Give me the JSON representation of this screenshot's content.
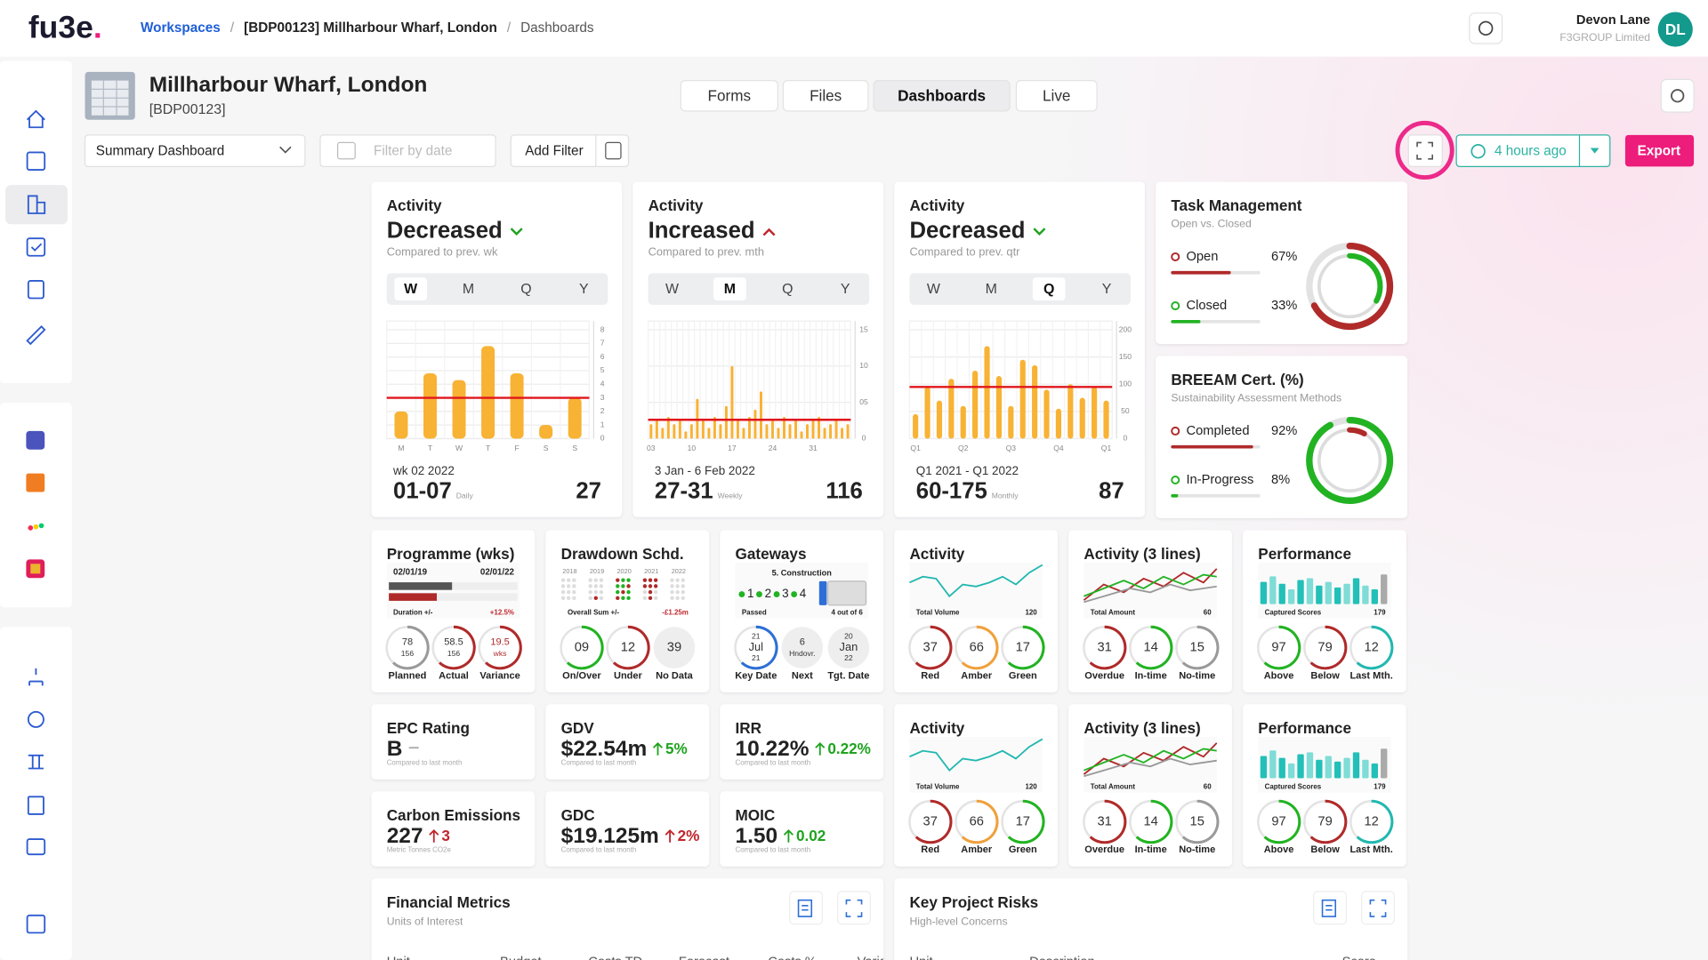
{
  "header": {
    "logo": "fu3e",
    "logo_dot": ".",
    "breadcrumb": [
      "Workspaces",
      "/",
      "[BDP00123] Millharbour Wharf, London",
      "/",
      "Dashboards"
    ],
    "user": {
      "name": "Devon Lane",
      "org": "F3GROUP Limited",
      "initials": "DL"
    }
  },
  "project": {
    "title": "Millharbour Wharf, London",
    "code": "[BDP00123]"
  },
  "tabs": [
    "Forms",
    "Files",
    "Dashboards",
    "Live"
  ],
  "active_tab": 2,
  "toolbar": {
    "dashboard": "Summary Dashboard",
    "filter_placeholder": "Filter by date",
    "add_filter": "Add Filter",
    "updated": "4 hours ago",
    "export": "Export"
  },
  "activity_cards": [
    {
      "title": "Activity",
      "status": "Decreased",
      "trend": "down",
      "note": "Compared to prev. wk",
      "periods": [
        "W",
        "M",
        "Q",
        "Y"
      ],
      "selected": 0,
      "chart": {
        "type": "bar",
        "color": "#f8b234",
        "categories": [
          "M",
          "T",
          "W",
          "T",
          "F",
          "S",
          "S"
        ],
        "values": [
          2,
          4.8,
          4.3,
          6.8,
          4.8,
          1,
          3
        ],
        "threshold": 3,
        "ylim": [
          0,
          8
        ],
        "yticks": [
          0,
          1,
          2,
          3,
          4,
          5,
          6,
          7,
          8
        ]
      },
      "range": "wk 02 2022",
      "period": "01-07",
      "unit": "Daily",
      "total": 27
    },
    {
      "title": "Activity",
      "status": "Increased",
      "trend": "up",
      "note": "Compared to prev. mth",
      "periods": [
        "W",
        "M",
        "Q",
        "Y"
      ],
      "selected": 1,
      "chart": {
        "type": "bar",
        "color": "#f8b234",
        "categories": [
          "03",
          null,
          null,
          null,
          null,
          null,
          null,
          "10",
          null,
          null,
          null,
          null,
          null,
          null,
          "17",
          null,
          null,
          null,
          null,
          null,
          null,
          "24",
          null,
          null,
          null,
          null,
          null,
          null,
          "31",
          null,
          null,
          null,
          null,
          null,
          null
        ],
        "values": [
          2,
          2.5,
          1.5,
          3,
          2,
          2.5,
          1,
          2,
          5.5,
          2.5,
          1.5,
          3,
          2,
          4.5,
          10,
          2.5,
          1.5,
          3,
          4,
          6.5,
          2,
          2.5,
          1.5,
          3,
          2,
          2.5,
          1,
          2,
          2.5,
          3,
          1.5,
          2,
          2.5,
          1.5,
          2
        ],
        "threshold": 2.6,
        "ylim": [
          0,
          15
        ],
        "yticks": [
          0,
          {
            "value": 5,
            "label": "05"
          },
          10,
          15
        ]
      },
      "range": "3 Jan - 6 Feb 2022",
      "period": "27-31",
      "unit": "Weekly",
      "total": 116
    },
    {
      "title": "Activity",
      "status": "Decreased",
      "trend": "down",
      "note": "Compared to prev. qtr",
      "periods": [
        "W",
        "M",
        "Q",
        "Y"
      ],
      "selected": 2,
      "chart": {
        "type": "bar",
        "color": "#f8b234",
        "categories": [
          "Q1",
          null,
          null,
          null,
          "Q2",
          null,
          null,
          null,
          "Q3",
          null,
          null,
          null,
          "Q4",
          null,
          null,
          null,
          "Q1"
        ],
        "values": [
          45,
          95,
          70,
          110,
          60,
          125,
          170,
          115,
          60,
          145,
          135,
          90,
          55,
          100,
          75,
          95,
          70
        ],
        "threshold": 95,
        "ylim": [
          0,
          200
        ],
        "yticks": [
          0,
          50,
          100,
          150,
          200
        ]
      },
      "range": "Q1 2021 - Q1 2022",
      "period": "60-175",
      "unit": "Monthly",
      "total": 87
    }
  ],
  "ring_cards": [
    {
      "title": "Task Management",
      "subtitle": "Open vs. Closed",
      "ring_colors": [
        "#b02a2a",
        "#22b322"
      ],
      "items": [
        {
          "label": "Open",
          "value": 67,
          "value_label": "67%",
          "color": "#b02a2a"
        },
        {
          "label": "Closed",
          "value": 33,
          "value_label": "33%",
          "color": "#22b322"
        }
      ]
    },
    {
      "title": "BREEAM Cert. (%)",
      "subtitle": "Sustainability Assessment Methods",
      "ring_colors": [
        "#22b322",
        "#b02a2a"
      ],
      "items": [
        {
          "label": "Completed",
          "value": 92,
          "value_label": "92%",
          "color": "#b02a2a"
        },
        {
          "label": "In-Progress",
          "value": 8,
          "value_label": "8%",
          "color": "#22b322"
        }
      ]
    }
  ],
  "mini_cards": [
    {
      "title": "Programme (wks)",
      "kind": "program",
      "start": "02/01/19",
      "end": "02/01/22",
      "caption": "Duration +/-",
      "caption_value": "+12.5%",
      "gauges": [
        {
          "lines": [
            "78",
            "156"
          ],
          "label": "Planned",
          "color": "#9a9a9a"
        },
        {
          "lines": [
            "58.5",
            "156"
          ],
          "label": "Actual",
          "color": "#b02a2a"
        },
        {
          "lines": [
            "19.5",
            "wks"
          ],
          "label": "Variance",
          "color": "#b02a2a",
          "text_color": "#b02a2a"
        }
      ]
    },
    {
      "title": "Drawdown Schd.",
      "kind": "drawdown",
      "years": [
        "2018",
        "2019",
        "2020",
        "2021",
        "2022"
      ],
      "caption": "Overall Sum +/-",
      "caption_value": "-£1.25m",
      "gauges": [
        {
          "lines": [
            "09"
          ],
          "label": "On/Over",
          "color": "#22b322"
        },
        {
          "lines": [
            "12"
          ],
          "label": "Under",
          "color": "#b02a2a"
        },
        {
          "lines": [
            "39"
          ],
          "label": "No Data",
          "color": "#e6e6e6",
          "filled": true
        }
      ]
    },
    {
      "title": "Gateways",
      "kind": "gateway",
      "stage": "5. Construction",
      "steps": [
        "1",
        "2",
        "3",
        "4"
      ],
      "caption": "Passed",
      "caption_value": "4 out of 6",
      "gauges": [
        {
          "lines": [
            "21",
            "Jul",
            "21"
          ],
          "label": "Key Date",
          "color": "#2d6fd6"
        },
        {
          "lines": [
            "6",
            "Hndovr."
          ],
          "label": "Next",
          "color": "#e6e6e6",
          "filled": true
        },
        {
          "lines": [
            "20",
            "Jan",
            "22"
          ],
          "label": "Tgt. Date",
          "color": "#e6e6e6",
          "filled": true
        }
      ]
    },
    {
      "title": "Activity",
      "kind": "spark",
      "caption": "Total Volume",
      "caption_value": "120",
      "gauges": [
        {
          "lines": [
            "37"
          ],
          "label": "Red",
          "color": "#b02a2a"
        },
        {
          "lines": [
            "66"
          ],
          "label": "Amber",
          "color": "#f0a03c"
        },
        {
          "lines": [
            "17"
          ],
          "label": "Green",
          "color": "#22b322"
        }
      ]
    },
    {
      "title": "Activity (3 lines)",
      "kind": "lines",
      "caption": "Total Amount",
      "caption_value": "60",
      "gauges": [
        {
          "lines": [
            "31"
          ],
          "label": "Overdue",
          "color": "#b02a2a"
        },
        {
          "lines": [
            "14"
          ],
          "label": "In-time",
          "color": "#22b322"
        },
        {
          "lines": [
            "15"
          ],
          "label": "No-time",
          "color": "#9a9a9a"
        }
      ]
    },
    {
      "title": "Performance",
      "kind": "perf",
      "caption": "Captured Scores",
      "caption_value": "179",
      "gauges": [
        {
          "lines": [
            "97"
          ],
          "label": "Above",
          "color": "#22b322"
        },
        {
          "lines": [
            "79"
          ],
          "label": "Below",
          "color": "#b02a2a"
        },
        {
          "lines": [
            "12"
          ],
          "label": "Last Mth.",
          "color": "#22b8b0"
        }
      ]
    },
    {
      "title": "Activity",
      "kind": "spark",
      "caption": "Total Volume",
      "caption_value": "120",
      "gauges": [
        {
          "lines": [
            "37"
          ],
          "label": "Red",
          "color": "#b02a2a"
        },
        {
          "lines": [
            "66"
          ],
          "label": "Amber",
          "color": "#f0a03c"
        },
        {
          "lines": [
            "17"
          ],
          "label": "Green",
          "color": "#22b322"
        }
      ]
    },
    {
      "title": "Activity (3 lines)",
      "kind": "lines",
      "caption": "Total Amount",
      "caption_value": "60",
      "gauges": [
        {
          "lines": [
            "31"
          ],
          "label": "Overdue",
          "color": "#b02a2a"
        },
        {
          "lines": [
            "14"
          ],
          "label": "In-time",
          "color": "#22b322"
        },
        {
          "lines": [
            "15"
          ],
          "label": "No-time",
          "color": "#9a9a9a"
        }
      ]
    },
    {
      "title": "Performance",
      "kind": "perf",
      "caption": "Captured Scores",
      "caption_value": "179",
      "gauges": [
        {
          "lines": [
            "97"
          ],
          "label": "Above",
          "color": "#22b322"
        },
        {
          "lines": [
            "79"
          ],
          "label": "Below",
          "color": "#b02a2a"
        },
        {
          "lines": [
            "12"
          ],
          "label": "Last Mth.",
          "color": "#22b8b0"
        }
      ]
    }
  ],
  "kpi_cards": [
    {
      "title": "EPC Rating",
      "value": "B",
      "note": "Compared to last month"
    },
    {
      "title": "GDV",
      "value": "$22.54m",
      "change": "5%",
      "change_color": "#1fa31f",
      "note": "Compared to last month"
    },
    {
      "title": "IRR",
      "value": "10.22%",
      "change": "0.22%",
      "change_color": "#1fa31f",
      "note": "Compared to last month"
    },
    {
      "title": "Carbon Emissions",
      "value": "227",
      "change": "3",
      "change_color": "#c0262d",
      "note": "Metric Tonnes CO2e"
    },
    {
      "title": "GDC",
      "value": "$19.125m",
      "change": "2%",
      "change_color": "#c0262d",
      "note": "Compared to last month"
    },
    {
      "title": "MOIC",
      "value": "1.50",
      "change": "0.02",
      "change_color": "#1fa31f",
      "note": "Compared to last month"
    }
  ],
  "table_cards": [
    {
      "title": "Financial Metrics",
      "subtitle": "Units of Interest",
      "columns": [
        "Unit",
        "Budget",
        "Costs TD",
        "Forecast",
        "Costs %",
        "Variance"
      ]
    },
    {
      "title": "Key Project Risks",
      "subtitle": "High-level Concerns",
      "columns": [
        "Unit",
        "Description",
        "Score"
      ]
    }
  ]
}
